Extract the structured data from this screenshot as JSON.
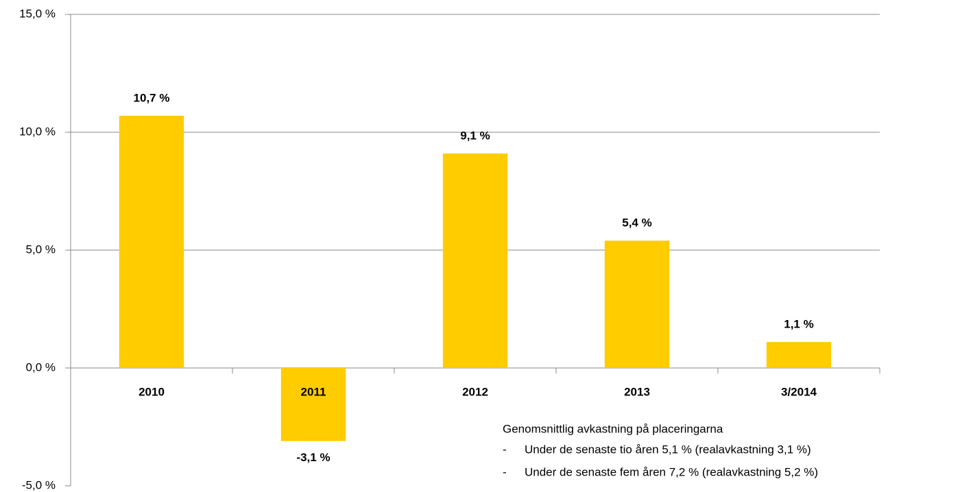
{
  "chart_data": {
    "type": "bar",
    "categories": [
      "2010",
      "2011",
      "2012",
      "2013",
      "3/2014"
    ],
    "values": [
      10.7,
      -3.1,
      9.1,
      5.4,
      1.1
    ],
    "value_labels": [
      "10,7 %",
      "-3,1 %",
      "9,1 %",
      "5,4 %",
      "1,1 %"
    ],
    "color": "#ffcc00",
    "ylim": [
      -5,
      15
    ],
    "yticks": [
      {
        "value": -5,
        "label": "-5,0 %"
      },
      {
        "value": 0,
        "label": "0,0 %"
      },
      {
        "value": 5,
        "label": "5,0 %"
      },
      {
        "value": 10,
        "label": "10,0 %"
      },
      {
        "value": 15,
        "label": "15,0 %"
      }
    ],
    "grid": true,
    "annotations": {
      "heading": "Genomsnittlig avkastning på placeringarna",
      "items": [
        "Under de senaste tio åren 5,1 % (realavkastning 3,1 %)",
        "Under de senaste fem åren 7,2 % (realavkastning 5,2 %)"
      ]
    }
  }
}
